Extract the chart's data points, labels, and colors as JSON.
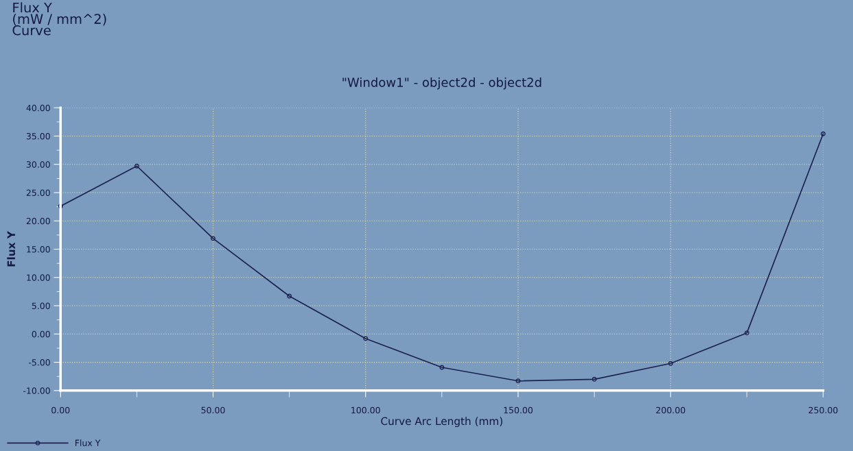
{
  "chart_data": {
    "type": "line",
    "title": "\"Window1\" - object2d - object2d",
    "xlabel": "Curve Arc Length (mm)",
    "ylabel": "Flux Y",
    "annotations": [
      "Flux Y\n(mW / mm^2)\nCurve"
    ],
    "x": [
      0,
      25,
      50,
      75,
      100,
      125,
      150,
      175,
      200,
      225,
      250
    ],
    "series": [
      {
        "name": "Flux Y",
        "color": "#1c2250",
        "values": [
          22.6,
          29.7,
          16.9,
          6.7,
          -0.8,
          -5.9,
          -8.3,
          -8.0,
          -5.2,
          0.2,
          35.4
        ]
      }
    ],
    "xlim": [
      0,
      250
    ],
    "xticks": [
      {
        "value": 0,
        "label": "0.00"
      },
      {
        "value": 25,
        "label": null
      },
      {
        "value": 50,
        "label": "50.00"
      },
      {
        "value": 75,
        "label": null
      },
      {
        "value": 100,
        "label": "100.00"
      },
      {
        "value": 125,
        "label": null
      },
      {
        "value": 150,
        "label": "150.00"
      },
      {
        "value": 175,
        "label": null
      },
      {
        "value": 200,
        "label": "200.00"
      },
      {
        "value": 225,
        "label": null
      },
      {
        "value": 250,
        "label": "250.00"
      }
    ],
    "ylim": [
      -10,
      40
    ],
    "yticks": [
      {
        "value": -10,
        "label": "-10.00"
      },
      {
        "value": -7.5,
        "label": null
      },
      {
        "value": -5,
        "label": "-5.00"
      },
      {
        "value": -2.5,
        "label": null
      },
      {
        "value": 0,
        "label": "0.00"
      },
      {
        "value": 2.5,
        "label": null
      },
      {
        "value": 5,
        "label": "5.00"
      },
      {
        "value": 7.5,
        "label": null
      },
      {
        "value": 10,
        "label": "10.00"
      },
      {
        "value": 12.5,
        "label": null
      },
      {
        "value": 15,
        "label": "15.00"
      },
      {
        "value": 17.5,
        "label": null
      },
      {
        "value": 20,
        "label": "20.00"
      },
      {
        "value": 22.5,
        "label": null
      },
      {
        "value": 25,
        "label": "25.00"
      },
      {
        "value": 27.5,
        "label": null
      },
      {
        "value": 30,
        "label": "30.00"
      },
      {
        "value": 32.5,
        "label": null
      },
      {
        "value": 35,
        "label": "35.00"
      },
      {
        "value": 37.5,
        "label": null
      },
      {
        "value": 40,
        "label": "40.00"
      }
    ],
    "grid": true,
    "legend": "bottom left",
    "marker": "circle",
    "line_style": "solid"
  }
}
